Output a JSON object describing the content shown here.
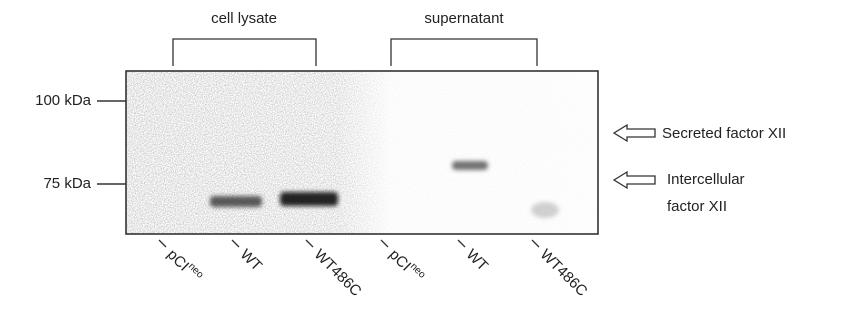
{
  "groups": [
    {
      "label": "cell lysate"
    },
    {
      "label": "supernatant"
    }
  ],
  "markers": [
    {
      "label": "100 kDa"
    },
    {
      "label": "75 kDa"
    }
  ],
  "lanes": [
    {
      "label": "pCI",
      "sup": "neo"
    },
    {
      "label": "WT"
    },
    {
      "label": "WT486C"
    },
    {
      "label": "pCI",
      "sup": "neo"
    },
    {
      "label": "WT"
    },
    {
      "label": "WT486C"
    }
  ],
  "arrows": [
    {
      "lines": [
        "Secreted factor XII"
      ]
    },
    {
      "lines": [
        "Intercellular",
        "factor XII"
      ]
    }
  ]
}
